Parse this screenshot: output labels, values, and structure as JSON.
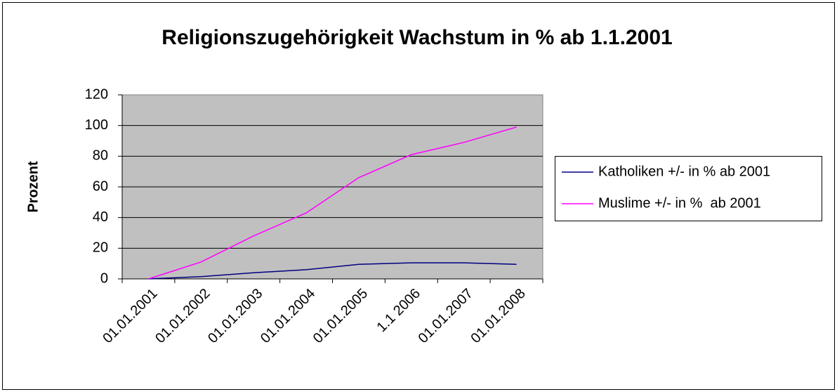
{
  "chart_data": {
    "type": "line",
    "title": "Religionszugehörigkeit Wachstum in % ab 1.1.2001",
    "y_label": "Prozent",
    "categories": [
      "01.01.2001",
      "01.01.2002",
      "01.01.2003",
      "01.01.2004",
      "01.01.2005",
      "1.1 2006",
      "01.01.2007",
      "01.01.2008"
    ],
    "series": [
      {
        "name": "Katholiken +/- in % ab 2001",
        "color": "#000080",
        "values": [
          0,
          1.5,
          4,
          6,
          9.5,
          10.5,
          10.5,
          9.5
        ]
      },
      {
        "name": "Muslime +/- in %  ab 2001",
        "color": "#ff00ff",
        "values": [
          0,
          11,
          28,
          43,
          66,
          81,
          89,
          99
        ]
      }
    ],
    "ylim": [
      0,
      120
    ],
    "yticks": [
      0,
      20,
      40,
      60,
      80,
      100,
      120
    ],
    "grid": true,
    "legend": "right"
  }
}
